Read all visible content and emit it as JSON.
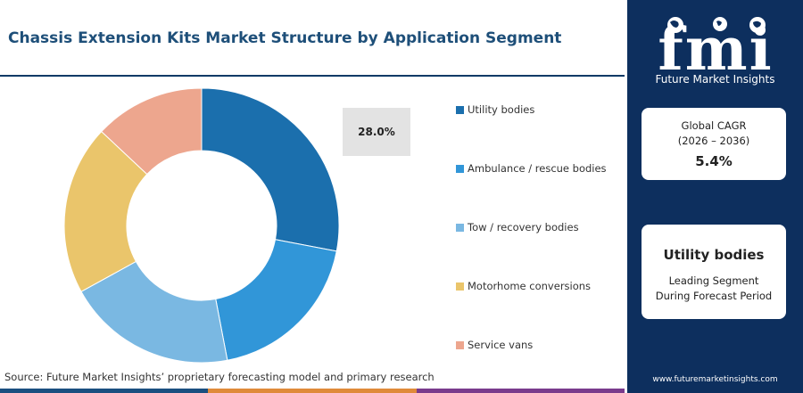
{
  "header": {
    "title": "Chassis Extension Kits Market Structure by Application Segment"
  },
  "chart_data": {
    "type": "pie",
    "donut": true,
    "categories": [
      "Utility bodies",
      "Ambulance / rescue bodies",
      "Tow / recovery bodies",
      "Motorhome conversions",
      "Service vans"
    ],
    "values": [
      28.0,
      19.0,
      20.0,
      20.0,
      13.0
    ],
    "colors": [
      "#1b6fad",
      "#3196d8",
      "#7ab8e2",
      "#eac56b",
      "#eda68e"
    ],
    "highlight_label": "28.0%",
    "legend_position": "right"
  },
  "footer": {
    "source": "Source: Future Market Insights’ proprietary forecasting model and primary research"
  },
  "bottom_bar_colors": [
    "#1b4f80",
    "#e08a3a",
    "#7a3b8c"
  ],
  "sidebar": {
    "logo_text": "fmi",
    "logo_subtitle": "Future Market Insights",
    "cagr_card": {
      "label_line1": "Global CAGR",
      "label_line2": "(2026 – 2036)",
      "value": "5.4%"
    },
    "segment_card": {
      "title": "Utility bodies",
      "line1": "Leading Segment",
      "line2": "During Forecast Period"
    },
    "website": "www.futuremarketinsights.com"
  }
}
